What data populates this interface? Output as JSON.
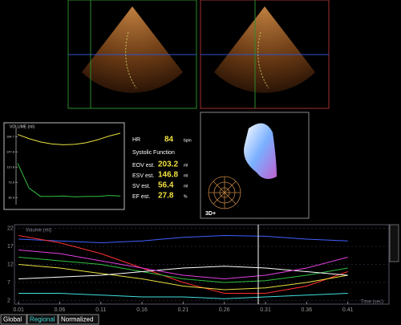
{
  "volume_chart": {
    "title": "VOLUME (ml)",
    "ylim": [
      20,
      195
    ],
    "yticks": [
      184.7,
      147.8,
      110.8,
      73.9,
      36.9
    ],
    "series": [
      {
        "color": "#e8e040",
        "values": [
          190,
          180,
          172,
          167,
          165,
          166,
          170,
          177,
          186,
          193
        ]
      },
      {
        "color": "#30c040",
        "values": [
          120,
          60,
          40,
          40,
          41,
          39,
          40,
          40,
          42,
          41
        ]
      }
    ]
  },
  "stats": {
    "hr_label": "HR",
    "hr_value": "84",
    "hr_unit": "bpm",
    "heading": "Systolic Function",
    "rows": [
      {
        "label": "EOV est.",
        "value": "203.2",
        "unit": "ml"
      },
      {
        "label": "ESV est.",
        "value": "146.8",
        "unit": "ml"
      },
      {
        "label": "SV est.",
        "value": "56.4",
        "unit": "ml"
      },
      {
        "label": "EF est.",
        "value": "27.8",
        "unit": "%"
      }
    ]
  },
  "model_label": "3D+",
  "regional_chart": {
    "ylabel": "Volume (ml)",
    "xlabel": "Time (sec)",
    "xlim": [
      0.005,
      0.46
    ],
    "ylim": [
      1,
      23
    ],
    "xticks": [
      0.01,
      0.06,
      0.11,
      0.16,
      0.21,
      0.26,
      0.31,
      0.36,
      0.41
    ],
    "yticks": [
      22,
      17,
      12,
      7,
      2
    ],
    "x": [
      0.01,
      0.06,
      0.11,
      0.16,
      0.21,
      0.26,
      0.31,
      0.36,
      0.41
    ],
    "series": [
      {
        "color": "#4060ff",
        "values": [
          19,
          18.5,
          18,
          18.5,
          19.5,
          20,
          19.8,
          19,
          18.5
        ]
      },
      {
        "color": "#ff3030",
        "values": [
          20,
          18,
          15,
          11,
          7,
          4,
          4,
          6,
          10
        ]
      },
      {
        "color": "#e8e040",
        "values": [
          12,
          11,
          9.5,
          8,
          6,
          5,
          5.5,
          7,
          9
        ]
      },
      {
        "color": "#30c040",
        "values": [
          14,
          13,
          12,
          10,
          8,
          7,
          7.5,
          9,
          11
        ]
      },
      {
        "color": "#ffffff",
        "values": [
          8,
          8.5,
          9,
          10,
          11,
          11.5,
          11,
          10,
          9
        ]
      },
      {
        "color": "#e040e0",
        "values": [
          16,
          15,
          13,
          11,
          9,
          8,
          9,
          11,
          14
        ]
      },
      {
        "color": "#40e0e0",
        "values": [
          4,
          4,
          3.5,
          3,
          3,
          2.5,
          3,
          3.5,
          4
        ]
      }
    ]
  },
  "tabs": [
    "Global",
    "Regional",
    "Normalized"
  ]
}
